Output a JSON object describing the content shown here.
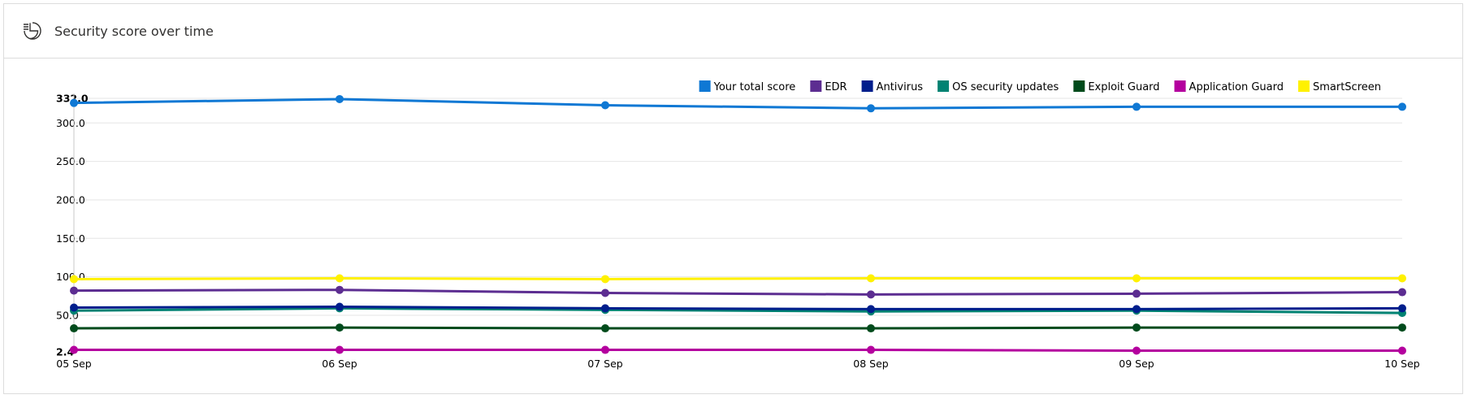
{
  "header": {
    "title": "Security score over time",
    "icon": "score-history-icon"
  },
  "chart_data": {
    "type": "line",
    "title": "",
    "xlabel": "",
    "ylabel": "",
    "categories": [
      "05 Sep",
      "06 Sep",
      "07 Sep",
      "08 Sep",
      "09 Sep",
      "10 Sep"
    ],
    "ylim": [
      2.4,
      332.0
    ],
    "yticks": [
      {
        "value": 2.4,
        "label": "2.4",
        "bold": true
      },
      {
        "value": 50,
        "label": "50.0",
        "bold": false
      },
      {
        "value": 100,
        "label": "100.0",
        "bold": false
      },
      {
        "value": 150,
        "label": "150.0",
        "bold": false
      },
      {
        "value": 200,
        "label": "200.0",
        "bold": false
      },
      {
        "value": 250,
        "label": "250.0",
        "bold": false
      },
      {
        "value": 300,
        "label": "300.0",
        "bold": false
      },
      {
        "value": 332,
        "label": "332.0",
        "bold": true
      }
    ],
    "grid": true,
    "legend_position": "top-right",
    "series": [
      {
        "name": "Your total score",
        "color": "#0f78d4",
        "values": [
          326,
          331,
          323,
          319,
          321,
          321
        ]
      },
      {
        "name": "EDR",
        "color": "#5c2d91",
        "values": [
          82,
          83,
          79,
          77,
          78,
          80
        ]
      },
      {
        "name": "Antivirus",
        "color": "#001e8c",
        "values": [
          60,
          61,
          59,
          58,
          58,
          59
        ]
      },
      {
        "name": "OS security updates",
        "color": "#008272",
        "values": [
          56,
          59,
          57,
          55,
          56,
          53
        ]
      },
      {
        "name": "Exploit Guard",
        "color": "#004b1c",
        "values": [
          33,
          34,
          33,
          33,
          34,
          34
        ]
      },
      {
        "name": "Application Guard",
        "color": "#b4009e",
        "values": [
          5,
          5,
          5,
          5,
          4,
          4
        ]
      },
      {
        "name": "SmartScreen",
        "color": "#fff100",
        "values": [
          97,
          98,
          97,
          98,
          98,
          98
        ]
      }
    ]
  }
}
